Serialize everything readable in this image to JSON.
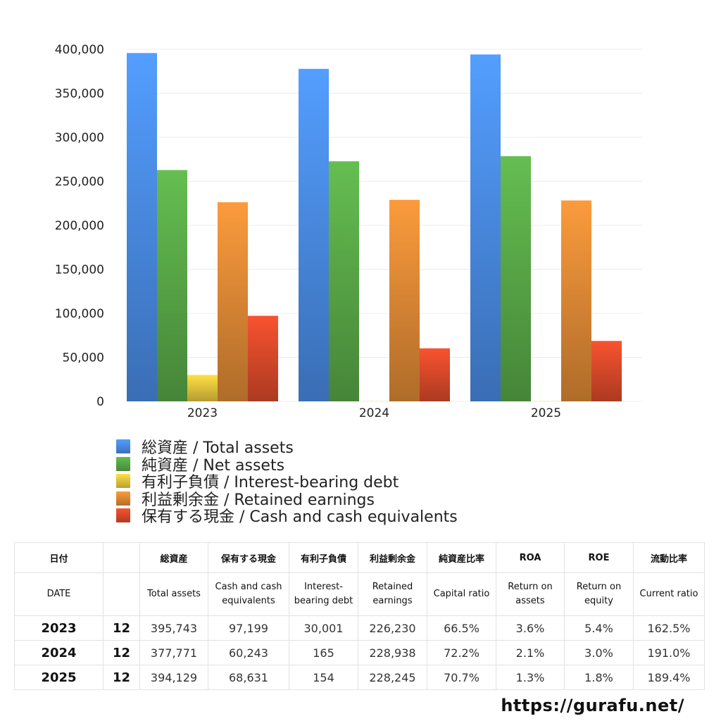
{
  "chart_data": {
    "type": "bar",
    "categories": [
      "2023",
      "2024",
      "2025"
    ],
    "series": [
      {
        "name": "総資産 / Total assets",
        "values": [
          395743,
          377771,
          394129
        ],
        "color": "#4a8de8"
      },
      {
        "name": "純資産 / Net assets",
        "values": [
          262800,
          272700,
          278600
        ],
        "color": "#5aaa48"
      },
      {
        "name": "有利子負債 / Interest-bearing debt",
        "values": [
          30001,
          165,
          154
        ],
        "color": "#e8c83e"
      },
      {
        "name": "利益剰余金 / Retained earnings",
        "values": [
          226230,
          228938,
          228245
        ],
        "color": "#e08a36"
      },
      {
        "name": "保有する現金 /  Cash and cash equivalents",
        "values": [
          97199,
          60243,
          68631
        ],
        "color": "#dd4a2a"
      }
    ],
    "yticks": [
      "400,000",
      "350,000",
      "300,000",
      "250,000",
      "200,000",
      "150,000",
      "100,000",
      "50,000",
      "0"
    ],
    "ylim": [
      0,
      400000
    ],
    "grid": true,
    "legend_position": "bottom"
  },
  "table": {
    "headers_jp": [
      "日付",
      "",
      "総資産",
      "保有する現金",
      "有利子負債",
      "利益剰余金",
      "純資産比率",
      "ROA",
      "ROE",
      "流動比率"
    ],
    "headers_en": [
      "DATE",
      "",
      "Total assets",
      "Cash and cash equivalents",
      "Interest-bearing debt",
      "Retained earnings",
      "Capital ratio",
      "Return on assets",
      "Return on equity",
      "Current ratio"
    ],
    "rows": [
      [
        "2023",
        "12",
        "395,743",
        "97,199",
        "30,001",
        "226,230",
        "66.5%",
        "3.6%",
        "5.4%",
        "162.5%"
      ],
      [
        "2024",
        "12",
        "377,771",
        "60,243",
        "165",
        "228,938",
        "72.2%",
        "2.1%",
        "3.0%",
        "191.0%"
      ],
      [
        "2025",
        "12",
        "394,129",
        "68,631",
        "154",
        "228,245",
        "70.7%",
        "1.3%",
        "1.8%",
        "189.4%"
      ]
    ]
  },
  "footer": {
    "url": "https://gurafu.net/"
  }
}
